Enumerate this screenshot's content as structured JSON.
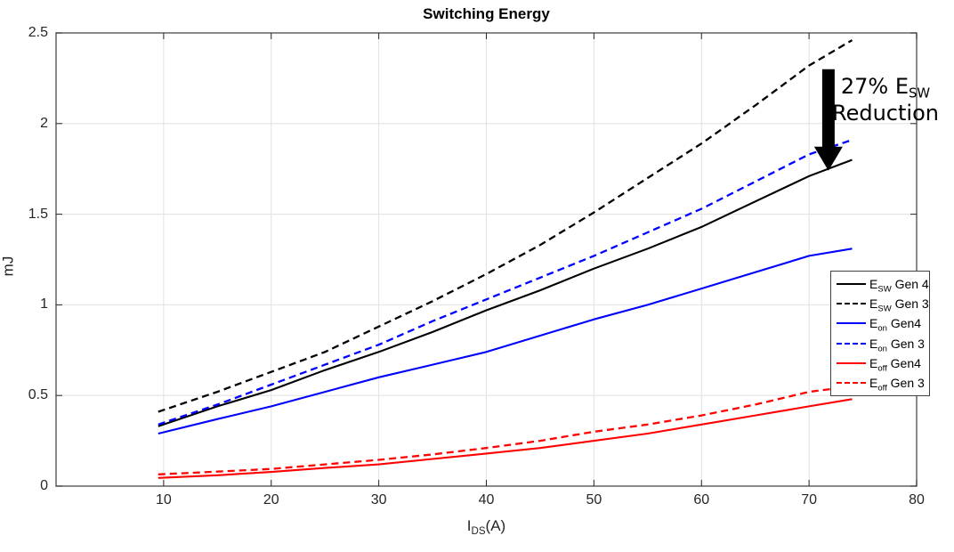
{
  "figure": {
    "title": "Switching Energy",
    "background": "#ffffff"
  },
  "chart_data": {
    "type": "line",
    "title": "Switching Energy",
    "xlabel": {
      "main": "I",
      "sub": "DS",
      "suffix": "(A)"
    },
    "ylabel": "mJ",
    "xlim": [
      0,
      80
    ],
    "ylim": [
      0,
      2.5
    ],
    "xticks": [
      10,
      20,
      30,
      40,
      50,
      60,
      70,
      80
    ],
    "yticks": [
      0,
      0.5,
      1,
      1.5,
      2,
      2.5
    ],
    "grid": true,
    "legend_position": "right-middle",
    "x": [
      9.5,
      15,
      20,
      25,
      30,
      35,
      40,
      45,
      50,
      55,
      60,
      65,
      70,
      74
    ],
    "series": [
      {
        "name": "ESW Gen 4",
        "label": {
          "main": "E",
          "sub": "SW",
          "suffix": " Gen 4"
        },
        "color": "#000000",
        "style": "solid",
        "values": [
          0.33,
          0.44,
          0.53,
          0.64,
          0.74,
          0.85,
          0.97,
          1.08,
          1.2,
          1.31,
          1.43,
          1.57,
          1.71,
          1.8
        ]
      },
      {
        "name": "ESW Gen 3",
        "label": {
          "main": "E",
          "sub": "SW",
          "suffix": " Gen 3"
        },
        "color": "#000000",
        "style": "dashed",
        "values": [
          0.41,
          0.52,
          0.63,
          0.74,
          0.88,
          1.02,
          1.17,
          1.33,
          1.51,
          1.7,
          1.89,
          2.1,
          2.32,
          2.46
        ]
      },
      {
        "name": "Eon Gen4",
        "label": {
          "main": "E",
          "sub": "on",
          "suffix": " Gen4"
        },
        "color": "#0000ff",
        "style": "solid",
        "values": [
          0.29,
          0.37,
          0.44,
          0.52,
          0.6,
          0.67,
          0.74,
          0.83,
          0.92,
          1.0,
          1.09,
          1.18,
          1.27,
          1.31
        ]
      },
      {
        "name": "Eon Gen 3",
        "label": {
          "main": "E",
          "sub": "on",
          "suffix": " Gen 3"
        },
        "color": "#0000ff",
        "style": "dashed",
        "values": [
          0.34,
          0.45,
          0.56,
          0.67,
          0.78,
          0.91,
          1.03,
          1.15,
          1.27,
          1.4,
          1.53,
          1.68,
          1.83,
          1.91
        ]
      },
      {
        "name": "Eoff Gen4",
        "label": {
          "main": "E",
          "sub": "off",
          "suffix": " Gen4"
        },
        "color": "#ff0000",
        "style": "solid",
        "values": [
          0.045,
          0.06,
          0.078,
          0.1,
          0.12,
          0.15,
          0.18,
          0.21,
          0.25,
          0.29,
          0.34,
          0.39,
          0.44,
          0.48
        ]
      },
      {
        "name": "Eoff Gen 3",
        "label": {
          "main": "E",
          "sub": "off",
          "suffix": " Gen 3"
        },
        "color": "#ff0000",
        "style": "dashed",
        "values": [
          0.065,
          0.08,
          0.095,
          0.12,
          0.145,
          0.175,
          0.21,
          0.25,
          0.3,
          0.34,
          0.39,
          0.45,
          0.52,
          0.55
        ]
      }
    ],
    "annotation": {
      "line1_main": "27% E",
      "line1_sub": "SW",
      "line2": "Reduction",
      "arrow": {
        "x": 71.8,
        "y_from": 2.3,
        "y_to": 1.74,
        "color": "#000000"
      }
    },
    "colors": {
      "grid": "#e0e0e0",
      "axis_box": "#595959",
      "tick": "#262626",
      "text": "#000000"
    }
  }
}
